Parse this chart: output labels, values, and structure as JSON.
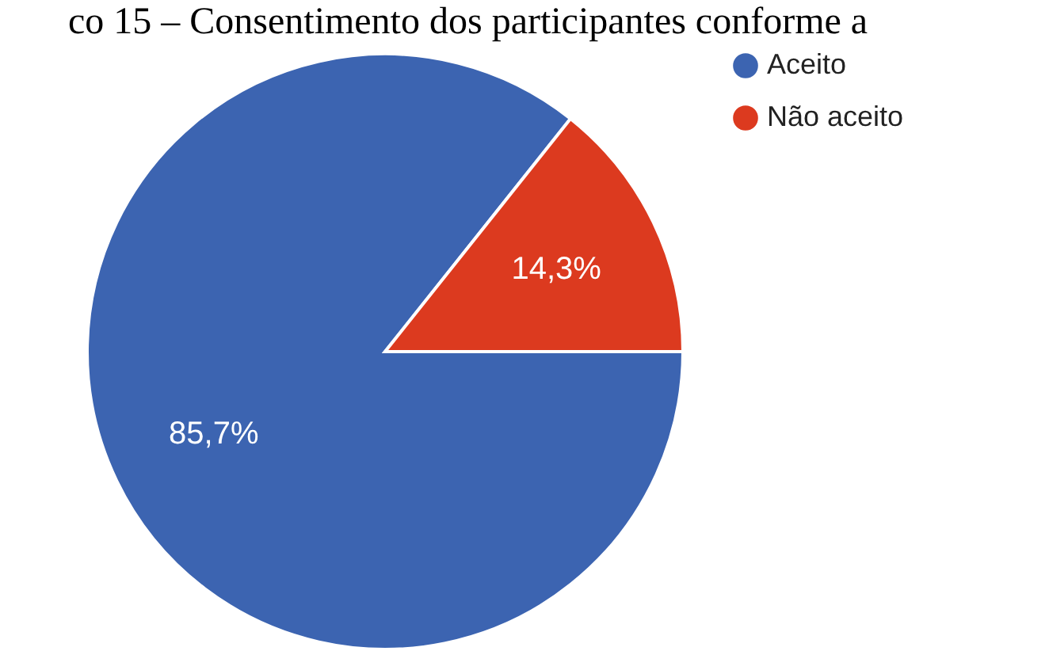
{
  "chart_data": {
    "type": "pie",
    "title": "co 15 – Consentimento dos participantes conforme a",
    "categories": [
      "Aceito",
      "Não aceito"
    ],
    "values": [
      85.7,
      14.3
    ],
    "colors": [
      "#3c64b1",
      "#dc3a1f"
    ],
    "value_labels": [
      "85,7%",
      "14,3%"
    ],
    "legend": "right"
  }
}
